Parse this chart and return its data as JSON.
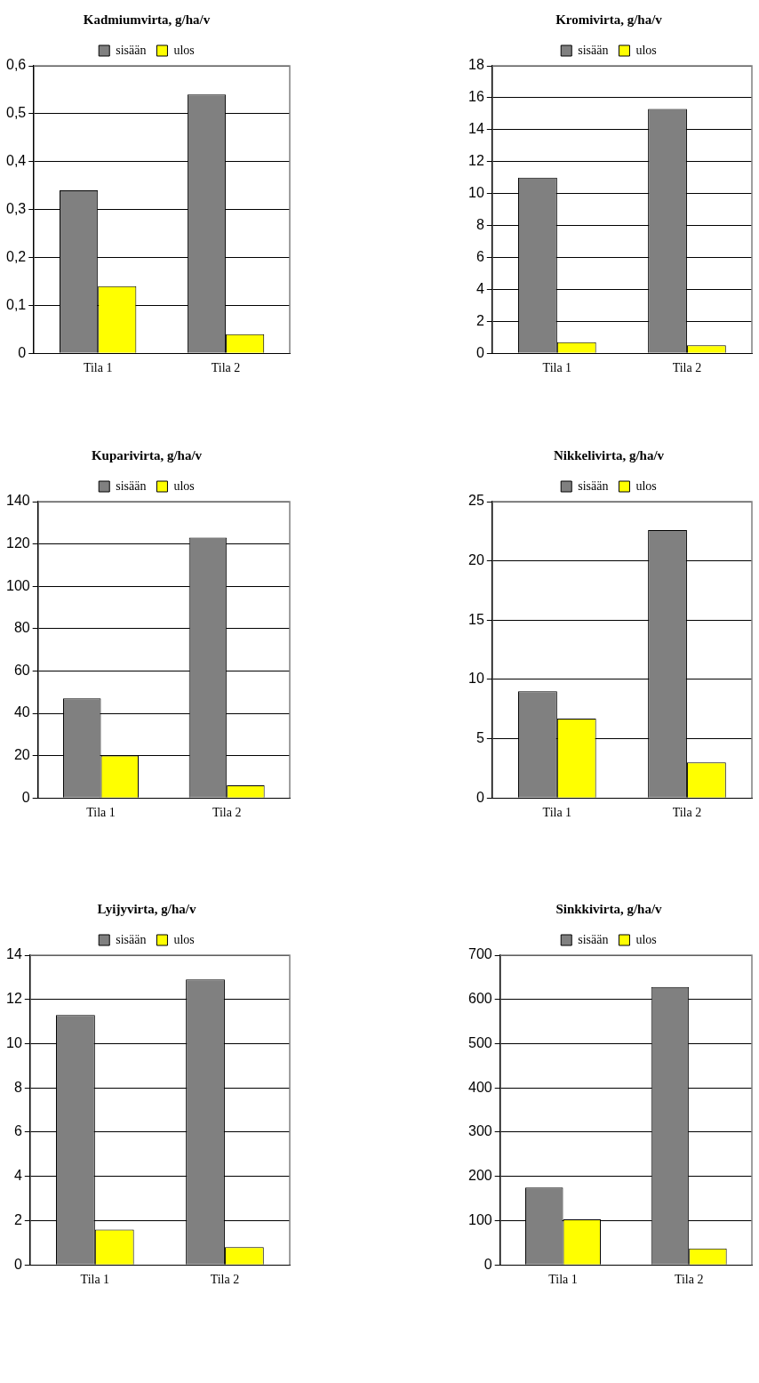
{
  "chart_data": [
    {
      "type": "bar",
      "title": "Kadmiumvirta, g/ha/v",
      "categories": [
        "Tila 1",
        "Tila 2"
      ],
      "series": [
        {
          "name": "sisään",
          "color": "#808080",
          "values": [
            0.34,
            0.54
          ]
        },
        {
          "name": "ulos",
          "color": "#ffff00",
          "values": [
            0.14,
            0.04
          ]
        }
      ],
      "ylim": [
        0,
        0.6
      ],
      "yticks": [
        0,
        {
          "value": 0.1,
          "label": "0,1"
        },
        {
          "value": 0.2,
          "label": "0,2"
        },
        {
          "value": 0.3,
          "label": "0,3"
        },
        {
          "value": 0.4,
          "label": "0,4"
        },
        {
          "value": 0.5,
          "label": "0,5"
        },
        {
          "value": 0.6,
          "label": "0,6"
        }
      ],
      "grid": "y",
      "legend": "top"
    },
    {
      "type": "bar",
      "title": "Kromivirta, g/ha/v",
      "categories": [
        "Tila 1",
        "Tila 2"
      ],
      "series": [
        {
          "name": "sisään",
          "color": "#808080",
          "values": [
            11.0,
            15.3
          ]
        },
        {
          "name": "ulos",
          "color": "#ffff00",
          "values": [
            0.7,
            0.5
          ]
        }
      ],
      "ylim": [
        0,
        18
      ],
      "yticks": [
        0,
        2,
        4,
        6,
        8,
        10,
        12,
        14,
        16,
        18
      ],
      "grid": "y",
      "legend": "top"
    },
    {
      "type": "bar",
      "title": "Kuparivirta, g/ha/v",
      "categories": [
        "Tila 1",
        "Tila 2"
      ],
      "series": [
        {
          "name": "sisään",
          "color": "#808080",
          "values": [
            47,
            123
          ]
        },
        {
          "name": "ulos",
          "color": "#ffff00",
          "values": [
            20,
            6
          ]
        }
      ],
      "ylim": [
        0,
        140
      ],
      "yticks": [
        0,
        20,
        40,
        60,
        80,
        100,
        120,
        140
      ],
      "grid": "y",
      "legend": "top"
    },
    {
      "type": "bar",
      "title": "Nikkelivirta, g/ha/v",
      "categories": [
        "Tila 1",
        "Tila 2"
      ],
      "series": [
        {
          "name": "sisään",
          "color": "#808080",
          "values": [
            9.0,
            22.6
          ]
        },
        {
          "name": "ulos",
          "color": "#ffff00",
          "values": [
            6.7,
            3.0
          ]
        }
      ],
      "ylim": [
        0,
        25
      ],
      "yticks": [
        0,
        5,
        10,
        15,
        20,
        25
      ],
      "grid": "y",
      "legend": "top"
    },
    {
      "type": "bar",
      "title": "Lyijyvirta, g/ha/v",
      "categories": [
        "Tila 1",
        "Tila 2"
      ],
      "series": [
        {
          "name": "sisään",
          "color": "#808080",
          "values": [
            11.3,
            12.9
          ]
        },
        {
          "name": "ulos",
          "color": "#ffff00",
          "values": [
            1.6,
            0.8
          ]
        }
      ],
      "ylim": [
        0,
        14
      ],
      "yticks": [
        0,
        2,
        4,
        6,
        8,
        10,
        12,
        14
      ],
      "grid": "y",
      "legend": "top"
    },
    {
      "type": "bar",
      "title": "Sinkkivirta, g/ha/v",
      "categories": [
        "Tila 1",
        "Tila 2"
      ],
      "series": [
        {
          "name": "sisään",
          "color": "#808080",
          "values": [
            175,
            628
          ]
        },
        {
          "name": "ulos",
          "color": "#ffff00",
          "values": [
            103,
            37
          ]
        }
      ],
      "ylim": [
        0,
        700
      ],
      "yticks": [
        0,
        100,
        200,
        300,
        400,
        500,
        600,
        700
      ],
      "grid": "y",
      "legend": "top"
    }
  ]
}
